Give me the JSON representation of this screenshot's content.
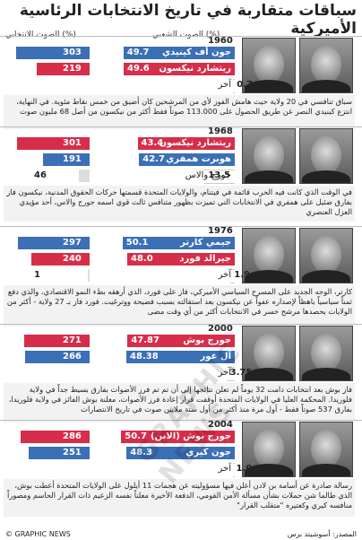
{
  "title": "سباقات متقاربة في تاريخ الانتخابات الرئاسية الأميركية",
  "headers": {
    "popular": "الصوت الشعبي (%)",
    "electoral": "الصوت الانتخابي (%)"
  },
  "colors": {
    "blue": "#3b6fb6",
    "red": "#d62e4a",
    "grey": "#ffffff"
  },
  "chart_data": {
    "type": "bar",
    "elections": [
      {
        "year": "1960",
        "candidates": [
          {
            "name": "جون أف كينيدي",
            "popular": 49.7,
            "popular_label": "49.7",
            "electoral": 303,
            "color": "blue"
          },
          {
            "name": "ريتشارد نيكسون",
            "popular": 49.6,
            "popular_label": "49.6",
            "electoral": 219,
            "color": "red"
          },
          {
            "name": "آخر",
            "popular": 0.7,
            "popular_label": "0.7",
            "electoral": null,
            "color": "grey"
          }
        ],
        "note": "سباق تنافسي في 20 ولاية حيث هامش الفوز لأي من المرشحين كان أضيق من خمس نقاط مئوية. في النهاية، انتزع كينيدي النصر عن طريق الحصول على 113.000 صوتاً فقط أكثر من نيكسون من أصل 68 مليون صوت"
      },
      {
        "year": "1968",
        "candidates": [
          {
            "name": "ريتشارد نيكسون",
            "popular": 43.4,
            "popular_label": "43.4",
            "electoral": 301,
            "color": "red"
          },
          {
            "name": "هوبرت همفري",
            "popular": 42.7,
            "popular_label": "42.7",
            "electoral": 191,
            "color": "blue"
          },
          {
            "name": "جورج والاس",
            "popular": 13.5,
            "popular_label": "13.5",
            "electoral": 46,
            "color": "grey"
          }
        ],
        "note": "في الوقت الذي كانت فيه الحرب قائمة في فيتنام، والولايات المتحدة قسمتها حركات الحقوق المدنية، نيكسون فاز بفارق ضئيل على همفري في الانتخابات التي تميزت بظهور متنافس ثالث قوي اسمه جورج والاس، أحد مؤيدي العزل العنصري"
      },
      {
        "year": "1976",
        "candidates": [
          {
            "name": "جيمي كارتر",
            "popular": 50.1,
            "popular_label": "50.1",
            "electoral": 297,
            "color": "blue"
          },
          {
            "name": "جيرالد فورد",
            "popular": 48.0,
            "popular_label": "48.0",
            "electoral": 240,
            "color": "red"
          },
          {
            "name": "آخر",
            "popular": 1.9,
            "popular_label": "1.9",
            "electoral": 1,
            "color": "grey"
          }
        ],
        "note": "كارتر، الوجه الجديد على المسرح السياسي الأميركي، فاز على فورد، الذي أرهقه بطء النمو الاقتصادي، والذي دفع ثمناً سياسياً باهظاً لإصداره عفواً عن نيكسون بعد استقالته بسبب فضيحة ووترغيت. فورد فاز بـ 27 ولاية - أكثر من الولايات بحصدها مرشح خسر في الانتخابات أكثر من أي وقت مضى"
      },
      {
        "year": "2000",
        "candidates": [
          {
            "name": "جورج بوش",
            "popular": 47.87,
            "popular_label": "47.87",
            "electoral": 271,
            "color": "red"
          },
          {
            "name": "آل غور",
            "popular": 48.38,
            "popular_label": "48.38",
            "electoral": 266,
            "color": "blue"
          },
          {
            "name": "آخر",
            "popular": 3.75,
            "popular_label": "3.75",
            "electoral": null,
            "color": "grey"
          }
        ],
        "note": "فاز بوش بعد انتخابات دامت 32 يوماً لم تعلن نتائجها إلى أن تم تم فرز الأصوات بفارق بسيط جداً في ولاية فلوريدا. المحكمة العليا في الولايات المتحدة أوقفت قرار إعادة فرز الأصوات، معلنة بوش الفائز في ولاية فلوريدا، بفارق 537 صوتاً فقط - أول مرة منذ أكثر من أول ستة ملايين صوت في تاريخ الانتصارات"
      },
      {
        "year": "2004",
        "candidates": [
          {
            "name": "جورج بوش (الابن)",
            "popular": 50.7,
            "popular_label": "50.7",
            "electoral": 286,
            "color": "red"
          },
          {
            "name": "جون كيري",
            "popular": 48.3,
            "popular_label": "48.3",
            "electoral": 251,
            "color": "blue"
          },
          {
            "name": "آخر",
            "popular": 1.0,
            "popular_label": "1.0",
            "electoral": null,
            "color": "grey"
          }
        ],
        "note": "رسالة صادرة عن أسامة بن لادن أعلن فيها مسؤوليته عن هجمات 11 أيلول على الولايات المتحدة أعطت بوش، الذي طالما شن حملات بشأن مسألة الأمن القومي، الدفعة الأخيرة معلناً نفسه الزعيم ذات القرار الحاسم ومصوراً منافسه كيري وكعتيره \"متقلب القرار\""
      }
    ]
  },
  "footer": {
    "left": "© GRAPHIC NEWS",
    "right": "المصدر: أسوشيتد برس"
  }
}
